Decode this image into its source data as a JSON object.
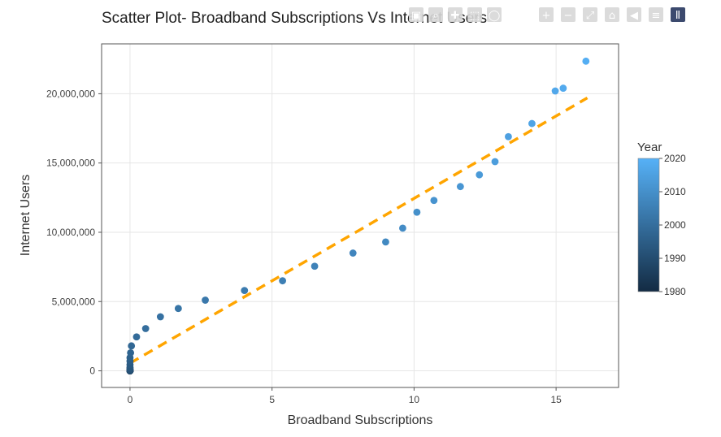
{
  "chart_data": {
    "type": "scatter",
    "title": "Scatter Plot- Broadband Subscriptions Vs Internet Users",
    "xlabel": "Broadband Subscriptions",
    "ylabel": "Internet Users",
    "xlim": [
      -1.0,
      17.2
    ],
    "ylim": [
      -1200000,
      23600000
    ],
    "xticks": [
      0,
      5,
      10,
      15
    ],
    "xtick_labels": [
      "0",
      "5",
      "10",
      "15"
    ],
    "yticks": [
      0,
      5000000,
      10000000,
      15000000,
      20000000
    ],
    "ytick_labels": [
      "0",
      "5,000,000",
      "10,000,000",
      "15,000,000",
      "20,000,000"
    ],
    "grid": true,
    "legend": {
      "title": "Year",
      "placement": "right",
      "type": "colorbar",
      "ticks": [
        1980,
        1990,
        2000,
        2010,
        2020
      ],
      "tick_labels": [
        "1980",
        "1990",
        "2000",
        "2010",
        "2020"
      ],
      "range": [
        1980,
        2020
      ],
      "colors": [
        "#132B43",
        "#56B1F7"
      ]
    },
    "trendline": {
      "style": "dashed",
      "color": "#FFA500",
      "points": [
        [
          0,
          550000
        ],
        [
          16.1,
          19700000
        ]
      ]
    },
    "points": [
      {
        "x": 0,
        "y": 0,
        "year": 1980
      },
      {
        "x": 0,
        "y": 0,
        "year": 1981
      },
      {
        "x": 0,
        "y": 0,
        "year": 1982
      },
      {
        "x": 0,
        "y": 0,
        "year": 1983
      },
      {
        "x": 0,
        "y": 0,
        "year": 1984
      },
      {
        "x": 0,
        "y": 0,
        "year": 1985
      },
      {
        "x": 0,
        "y": 0,
        "year": 1986
      },
      {
        "x": 0,
        "y": 0,
        "year": 1987
      },
      {
        "x": 0,
        "y": 0,
        "year": 1988
      },
      {
        "x": 0,
        "y": 0,
        "year": 1989
      },
      {
        "x": 0,
        "y": 30000,
        "year": 1990
      },
      {
        "x": 0,
        "y": 60000,
        "year": 1991
      },
      {
        "x": 0,
        "y": 150000,
        "year": 1992
      },
      {
        "x": 0,
        "y": 250000,
        "year": 1993
      },
      {
        "x": 0,
        "y": 450000,
        "year": 1994
      },
      {
        "x": 0,
        "y": 700000,
        "year": 1995
      },
      {
        "x": 0,
        "y": 950000,
        "year": 1996
      },
      {
        "x": 0.02,
        "y": 1300000,
        "year": 1997
      },
      {
        "x": 0.05,
        "y": 1800000,
        "year": 1998
      },
      {
        "x": 0.23,
        "y": 2450000,
        "year": 1999
      },
      {
        "x": 0.55,
        "y": 3050000,
        "year": 2000
      },
      {
        "x": 1.07,
        "y": 3900000,
        "year": 2001
      },
      {
        "x": 1.7,
        "y": 4500000,
        "year": 2002
      },
      {
        "x": 2.65,
        "y": 5100000,
        "year": 2003
      },
      {
        "x": 4.03,
        "y": 5800000,
        "year": 2004
      },
      {
        "x": 5.37,
        "y": 6500000,
        "year": 2005
      },
      {
        "x": 6.5,
        "y": 7550000,
        "year": 2006
      },
      {
        "x": 7.85,
        "y": 8500000,
        "year": 2007
      },
      {
        "x": 9.0,
        "y": 9300000,
        "year": 2008
      },
      {
        "x": 9.6,
        "y": 10300000,
        "year": 2009
      },
      {
        "x": 10.1,
        "y": 11450000,
        "year": 2010
      },
      {
        "x": 10.7,
        "y": 12300000,
        "year": 2011
      },
      {
        "x": 11.63,
        "y": 13300000,
        "year": 2012
      },
      {
        "x": 12.3,
        "y": 14150000,
        "year": 2013
      },
      {
        "x": 12.85,
        "y": 15100000,
        "year": 2014
      },
      {
        "x": 13.32,
        "y": 16900000,
        "year": 2015
      },
      {
        "x": 14.15,
        "y": 17850000,
        "year": 2016
      },
      {
        "x": 14.97,
        "y": 20200000,
        "year": 2017
      },
      {
        "x": 15.25,
        "y": 20400000,
        "year": 2018
      },
      {
        "x": 16.05,
        "y": 22350000,
        "year": 2019
      }
    ]
  },
  "modebar": {
    "buttons": [
      {
        "name": "camera-icon",
        "glyph": "▣"
      },
      {
        "name": "zoom-icon",
        "glyph": "⌕"
      },
      {
        "name": "pan-icon",
        "glyph": "✚"
      },
      {
        "name": "box-select-icon",
        "glyph": "⬚"
      },
      {
        "name": "lasso-select-icon",
        "glyph": "◯"
      },
      {
        "name": "zoom-in-icon",
        "glyph": "+"
      },
      {
        "name": "zoom-out-icon",
        "glyph": "−"
      },
      {
        "name": "autoscale-icon",
        "glyph": "⤢"
      },
      {
        "name": "reset-axes-icon",
        "glyph": "⌂"
      },
      {
        "name": "spike-lines-icon",
        "glyph": "◀"
      },
      {
        "name": "compare-data-icon",
        "glyph": "≡"
      },
      {
        "name": "plotly-logo-icon",
        "glyph": "Ⅱ"
      }
    ]
  }
}
